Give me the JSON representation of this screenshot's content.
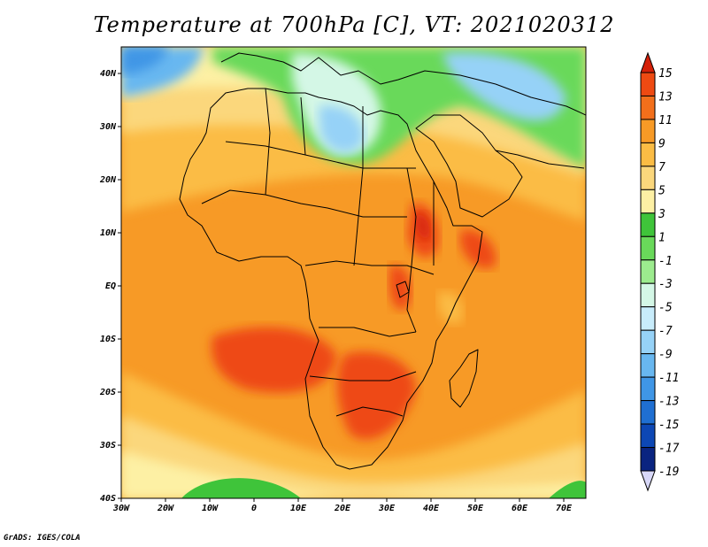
{
  "title": "Temperature at 700hPa [C], VT: 2021020312",
  "credit": "GrADS: IGES/COLA",
  "map": {
    "lon_range": [
      -30,
      75
    ],
    "lat_range": [
      -40,
      45
    ],
    "lon_ticks": [
      "30W",
      "20W",
      "10W",
      "0",
      "10E",
      "20E",
      "30E",
      "40E",
      "50E",
      "60E",
      "70E"
    ],
    "lat_ticks": [
      "40N",
      "30N",
      "20N",
      "10N",
      "EQ",
      "10S",
      "20S",
      "30S",
      "40S"
    ]
  },
  "colorbar": {
    "labels": [
      "15",
      "13",
      "11",
      "9",
      "7",
      "5",
      "3",
      "1",
      "-1",
      "-3",
      "-5",
      "-7",
      "-9",
      "-11",
      "-13",
      "-15",
      "-17",
      "-19"
    ],
    "colors": [
      "#d42008",
      "#ee4a12",
      "#f26f1b",
      "#f79a26",
      "#fbbc44",
      "#fbd77c",
      "#fdf0a4",
      "#3fc43a",
      "#69d95a",
      "#9ceb8e",
      "#d4f7e6",
      "#c8ecfb",
      "#96d2f7",
      "#68b7f0",
      "#3f96e6",
      "#1f6fd2",
      "#0d47b4",
      "#0a2480",
      "#080a55"
    ]
  },
  "colors": {
    "land_outline": "#000000",
    "frame": "#000000"
  }
}
